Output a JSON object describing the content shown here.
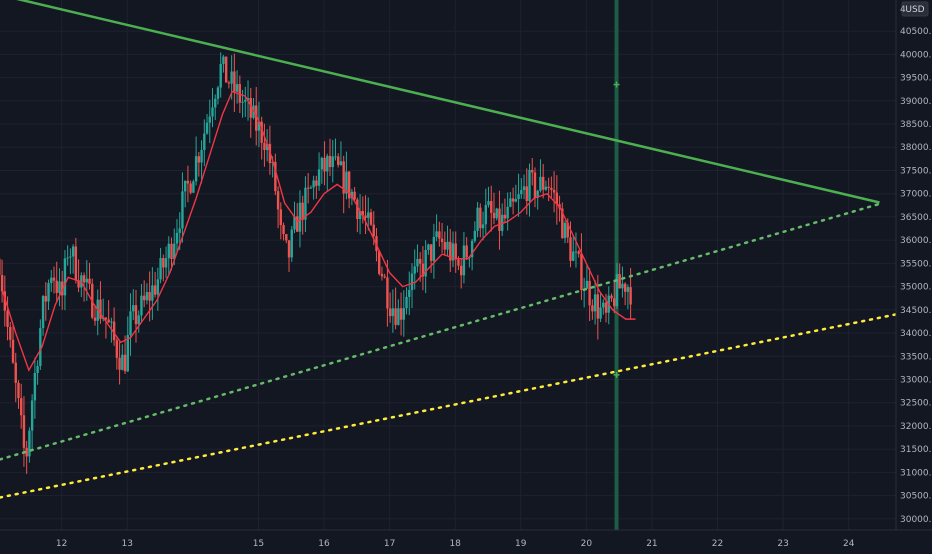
{
  "chart_data": {
    "type": "candlestick",
    "currency_label": "USD",
    "top_label_fragment": "4",
    "x_ticks": [
      "12",
      "13",
      "15",
      "16",
      "17",
      "18",
      "19",
      "20",
      "21",
      "22",
      "23",
      "24"
    ],
    "x_tick_days": [
      12,
      13,
      15,
      16,
      17,
      18,
      19,
      20,
      21,
      22,
      23,
      24
    ],
    "y_ticks": [
      30000,
      30500,
      31000,
      31500,
      32000,
      32500,
      33000,
      33500,
      34000,
      34500,
      35000,
      35500,
      36000,
      36500,
      37000,
      37500,
      38000,
      38500,
      39000,
      39500,
      40000,
      40500
    ],
    "y_tick_labels": [
      "30000.0",
      "30500.0",
      "31000.0",
      "31500.0",
      "32000.0",
      "32500.0",
      "33000.0",
      "33500.0",
      "34000.0",
      "34500.0",
      "35000.0",
      "35500.0",
      "36000.0",
      "36500.0",
      "37000.0",
      "37500.0",
      "38000.0",
      "38500.0",
      "39000.0",
      "39500.0",
      "40000.0",
      "40500.0"
    ],
    "x_range_days": [
      11.06,
      25.27
    ],
    "y_range": [
      29760,
      41170
    ],
    "grid": true,
    "colors": {
      "background": "#131722",
      "grid": "#1e2230",
      "up": "#26a69a",
      "down": "#ef5350",
      "moving_average": "#f23645",
      "trendline": "#4caf50",
      "support_dotted": "#66bb6a",
      "lower_dotted": "#ffeb3b",
      "vertical_marker": "#1b5e45"
    },
    "price_path": [
      [
        11.05,
        35600
      ],
      [
        11.2,
        33800
      ],
      [
        11.35,
        32300
      ],
      [
        11.45,
        31200
      ],
      [
        11.55,
        32600
      ],
      [
        11.7,
        34400
      ],
      [
        11.85,
        35400
      ],
      [
        12.0,
        34700
      ],
      [
        12.1,
        35900
      ],
      [
        12.25,
        35300
      ],
      [
        12.45,
        34700
      ],
      [
        12.65,
        34400
      ],
      [
        12.8,
        33800
      ],
      [
        12.95,
        33300
      ],
      [
        13.05,
        34200
      ],
      [
        13.25,
        34600
      ],
      [
        13.45,
        35100
      ],
      [
        13.65,
        35800
      ],
      [
        13.85,
        36800
      ],
      [
        14.0,
        37500
      ],
      [
        14.15,
        38200
      ],
      [
        14.3,
        39100
      ],
      [
        14.42,
        39700
      ],
      [
        14.52,
        39500
      ],
      [
        14.65,
        39200
      ],
      [
        14.8,
        38900
      ],
      [
        14.95,
        38500
      ],
      [
        15.1,
        38200
      ],
      [
        15.25,
        37200
      ],
      [
        15.35,
        36000
      ],
      [
        15.45,
        35600
      ],
      [
        15.6,
        36500
      ],
      [
        15.75,
        36900
      ],
      [
        15.9,
        37400
      ],
      [
        16.05,
        37600
      ],
      [
        16.2,
        37500
      ],
      [
        16.35,
        37200
      ],
      [
        16.5,
        36800
      ],
      [
        16.7,
        36200
      ],
      [
        16.85,
        35500
      ],
      [
        17.0,
        34700
      ],
      [
        17.15,
        34400
      ],
      [
        17.3,
        35100
      ],
      [
        17.45,
        35300
      ],
      [
        17.6,
        35700
      ],
      [
        17.75,
        36000
      ],
      [
        17.9,
        35800
      ],
      [
        18.05,
        35400
      ],
      [
        18.2,
        35800
      ],
      [
        18.35,
        36500
      ],
      [
        18.5,
        36600
      ],
      [
        18.65,
        36300
      ],
      [
        18.8,
        36500
      ],
      [
        18.95,
        36800
      ],
      [
        19.1,
        37200
      ],
      [
        19.25,
        37100
      ],
      [
        19.4,
        37300
      ],
      [
        19.55,
        36800
      ],
      [
        19.7,
        36000
      ],
      [
        19.85,
        35500
      ],
      [
        20.0,
        35000
      ],
      [
        20.15,
        34600
      ],
      [
        20.3,
        34300
      ],
      [
        20.45,
        34900
      ],
      [
        20.6,
        35100
      ],
      [
        20.7,
        34900
      ]
    ],
    "moving_average": [
      [
        11.1,
        34900
      ],
      [
        11.3,
        34000
      ],
      [
        11.5,
        33200
      ],
      [
        11.7,
        33700
      ],
      [
        11.9,
        34600
      ],
      [
        12.1,
        35200
      ],
      [
        12.3,
        35100
      ],
      [
        12.5,
        34600
      ],
      [
        12.7,
        34200
      ],
      [
        12.9,
        33800
      ],
      [
        13.05,
        33900
      ],
      [
        13.25,
        34300
      ],
      [
        13.45,
        34700
      ],
      [
        13.65,
        35300
      ],
      [
        13.85,
        36100
      ],
      [
        14.05,
        36900
      ],
      [
        14.25,
        37800
      ],
      [
        14.45,
        38700
      ],
      [
        14.6,
        39200
      ],
      [
        14.8,
        39100
      ],
      [
        15.0,
        38600
      ],
      [
        15.2,
        37800
      ],
      [
        15.4,
        36800
      ],
      [
        15.6,
        36400
      ],
      [
        15.8,
        36600
      ],
      [
        16.0,
        37000
      ],
      [
        16.2,
        37200
      ],
      [
        16.4,
        37000
      ],
      [
        16.6,
        36500
      ],
      [
        16.8,
        35900
      ],
      [
        17.0,
        35300
      ],
      [
        17.2,
        35000
      ],
      [
        17.4,
        35100
      ],
      [
        17.6,
        35400
      ],
      [
        17.8,
        35700
      ],
      [
        18.0,
        35600
      ],
      [
        18.2,
        35600
      ],
      [
        18.4,
        36000
      ],
      [
        18.6,
        36300
      ],
      [
        18.8,
        36400
      ],
      [
        19.0,
        36600
      ],
      [
        19.2,
        36900
      ],
      [
        19.4,
        37000
      ],
      [
        19.6,
        36700
      ],
      [
        19.8,
        36100
      ],
      [
        20.0,
        35500
      ],
      [
        20.2,
        34900
      ],
      [
        20.4,
        34500
      ],
      [
        20.6,
        34300
      ],
      [
        20.75,
        34300
      ]
    ],
    "trendline": [
      [
        11.06,
        41280
      ],
      [
        24.47,
        36810
      ]
    ],
    "support_line": [
      [
        11.06,
        31280
      ],
      [
        24.47,
        36780
      ]
    ],
    "lower_line": [
      [
        11.06,
        30460
      ],
      [
        25.27,
        34560
      ]
    ],
    "vertical_marker": {
      "x": 20.46,
      "markers": [
        39350,
        33100
      ]
    }
  }
}
